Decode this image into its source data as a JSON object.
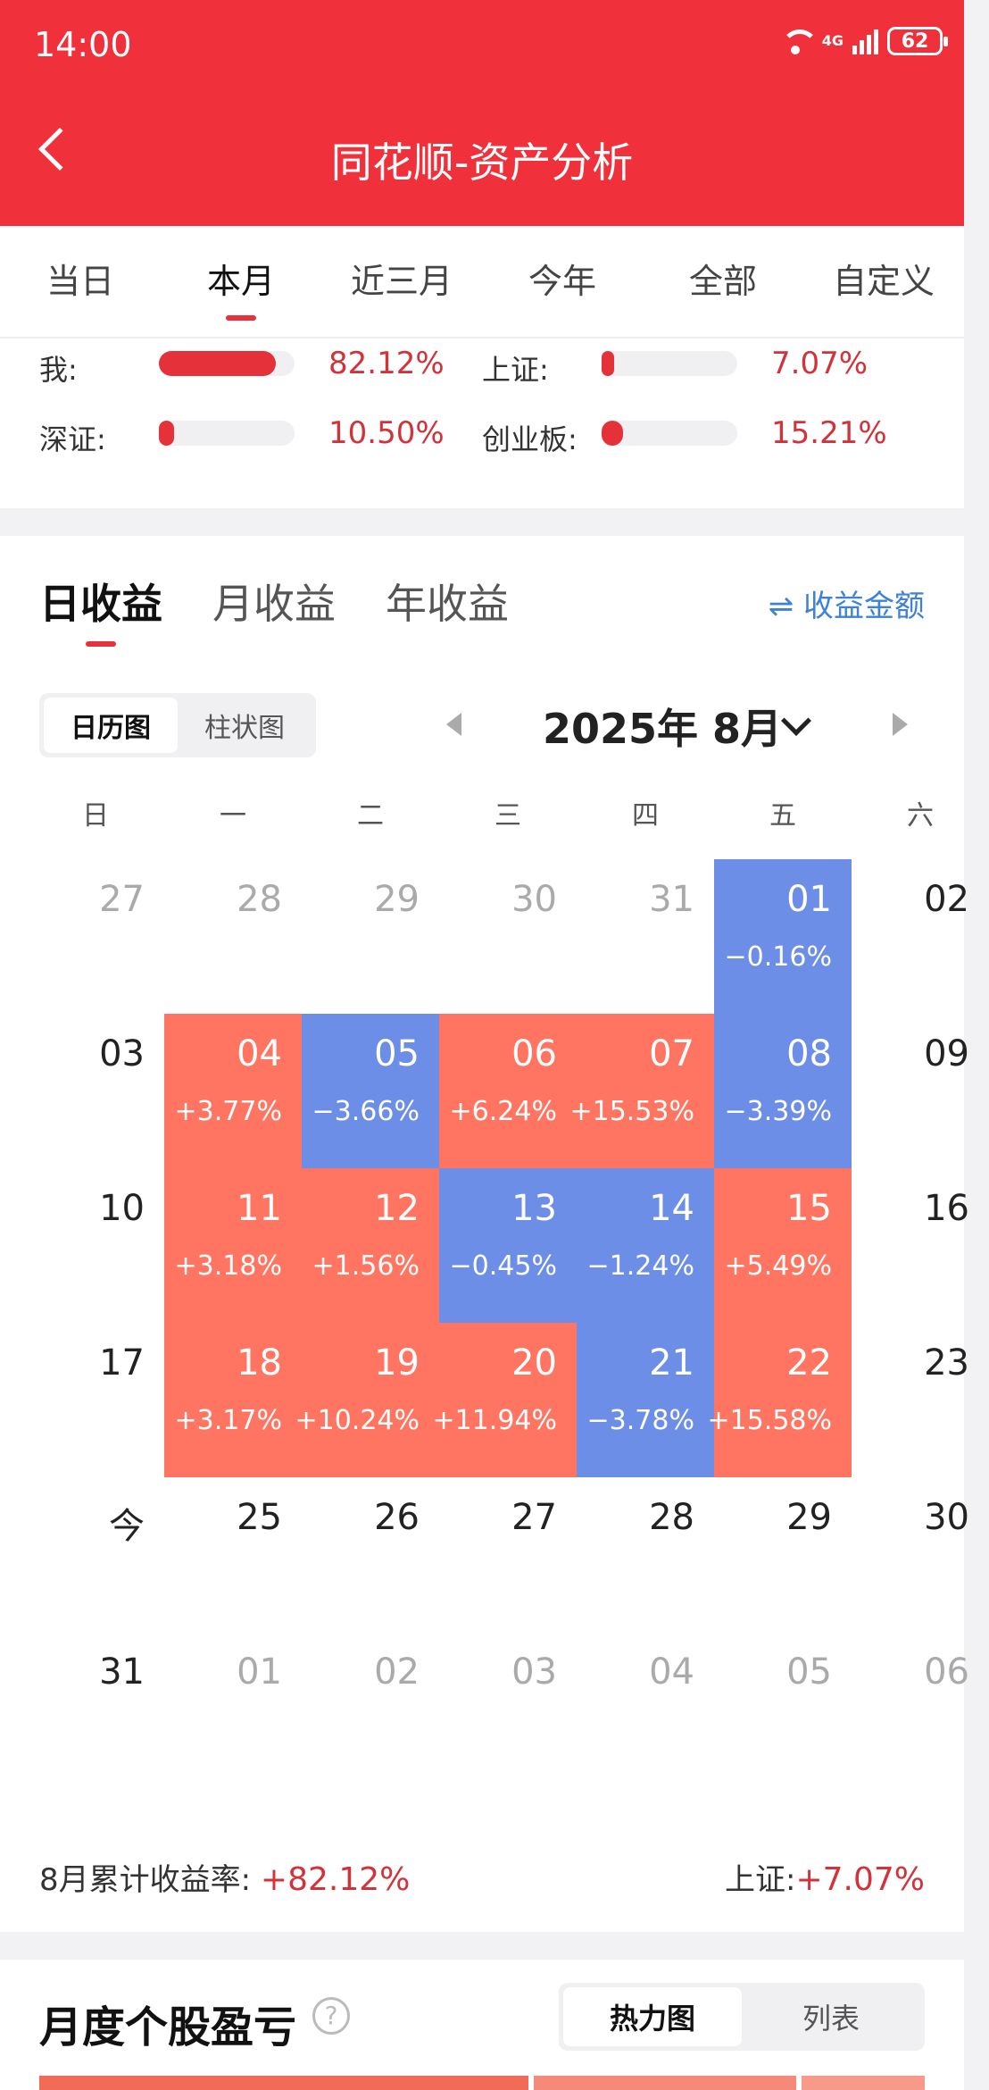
{
  "status": {
    "time": "14:00",
    "network": "4G",
    "battery": "62"
  },
  "header": {
    "title": "同花顺-资产分析"
  },
  "periods": [
    "当日",
    "本月",
    "近三月",
    "今年",
    "全部",
    "自定义"
  ],
  "active_period": "本月",
  "comparison": [
    {
      "label": "我:",
      "value": "82.12%",
      "fraction": 0.86
    },
    {
      "label": "上证:",
      "value": "7.07%",
      "fraction": 0.07
    },
    {
      "label": "深证:",
      "value": "10.50%",
      "fraction": 0.11
    },
    {
      "label": "创业板:",
      "value": "15.21%",
      "fraction": 0.16
    }
  ],
  "returns_tabs": [
    "日收益",
    "月收益",
    "年收益"
  ],
  "toggle_amount": "收益金额",
  "view_toggle": [
    "日历图",
    "柱状图"
  ],
  "month_label": "2025年 8月",
  "weekdays": [
    "日",
    "一",
    "二",
    "三",
    "四",
    "五",
    "六"
  ],
  "calendar": [
    [
      {
        "d": "27",
        "t": "muted"
      },
      {
        "d": "28",
        "t": "muted"
      },
      {
        "d": "29",
        "t": "muted"
      },
      {
        "d": "30",
        "t": "muted"
      },
      {
        "d": "31",
        "t": "muted"
      },
      {
        "d": "01",
        "t": "neg",
        "r": "−0.16%"
      },
      {
        "d": "02",
        "t": "plain"
      }
    ],
    [
      {
        "d": "03",
        "t": "plain"
      },
      {
        "d": "04",
        "t": "pos",
        "r": "+3.77%"
      },
      {
        "d": "05",
        "t": "neg",
        "r": "−3.66%"
      },
      {
        "d": "06",
        "t": "pos",
        "r": "+6.24%"
      },
      {
        "d": "07",
        "t": "pos",
        "r": "+15.53%"
      },
      {
        "d": "08",
        "t": "neg",
        "r": "−3.39%"
      },
      {
        "d": "09",
        "t": "plain"
      }
    ],
    [
      {
        "d": "10",
        "t": "plain"
      },
      {
        "d": "11",
        "t": "pos",
        "r": "+3.18%"
      },
      {
        "d": "12",
        "t": "pos",
        "r": "+1.56%"
      },
      {
        "d": "13",
        "t": "neg",
        "r": "−0.45%"
      },
      {
        "d": "14",
        "t": "neg",
        "r": "−1.24%"
      },
      {
        "d": "15",
        "t": "pos",
        "r": "+5.49%"
      },
      {
        "d": "16",
        "t": "plain"
      }
    ],
    [
      {
        "d": "17",
        "t": "plain"
      },
      {
        "d": "18",
        "t": "pos",
        "r": "+3.17%"
      },
      {
        "d": "19",
        "t": "pos",
        "r": "+10.24%"
      },
      {
        "d": "20",
        "t": "pos",
        "r": "+11.94%"
      },
      {
        "d": "21",
        "t": "neg",
        "r": "−3.78%"
      },
      {
        "d": "22",
        "t": "pos",
        "r": "+15.58%"
      },
      {
        "d": "23",
        "t": "plain"
      }
    ],
    [
      {
        "d": "今",
        "t": "plain"
      },
      {
        "d": "25",
        "t": "plain"
      },
      {
        "d": "26",
        "t": "plain"
      },
      {
        "d": "27",
        "t": "plain"
      },
      {
        "d": "28",
        "t": "plain"
      },
      {
        "d": "29",
        "t": "plain"
      },
      {
        "d": "30",
        "t": "plain"
      }
    ],
    [
      {
        "d": "31",
        "t": "plain"
      },
      {
        "d": "01",
        "t": "muted"
      },
      {
        "d": "02",
        "t": "muted"
      },
      {
        "d": "03",
        "t": "muted"
      },
      {
        "d": "04",
        "t": "muted"
      },
      {
        "d": "05",
        "t": "muted"
      },
      {
        "d": "06",
        "t": "muted"
      }
    ]
  ],
  "summary": {
    "label": "8月累计收益率:",
    "value": "+82.12%",
    "index_label": "上证:",
    "index_value": "+7.07%"
  },
  "stock_section": {
    "title": "月度个股盈亏",
    "help": "?",
    "views": [
      "热力图",
      "列表"
    ]
  },
  "colors": {
    "brand": "#f0303a",
    "gain": "#ff7562",
    "loss": "#6d8ee6",
    "link": "#3d82d8"
  }
}
